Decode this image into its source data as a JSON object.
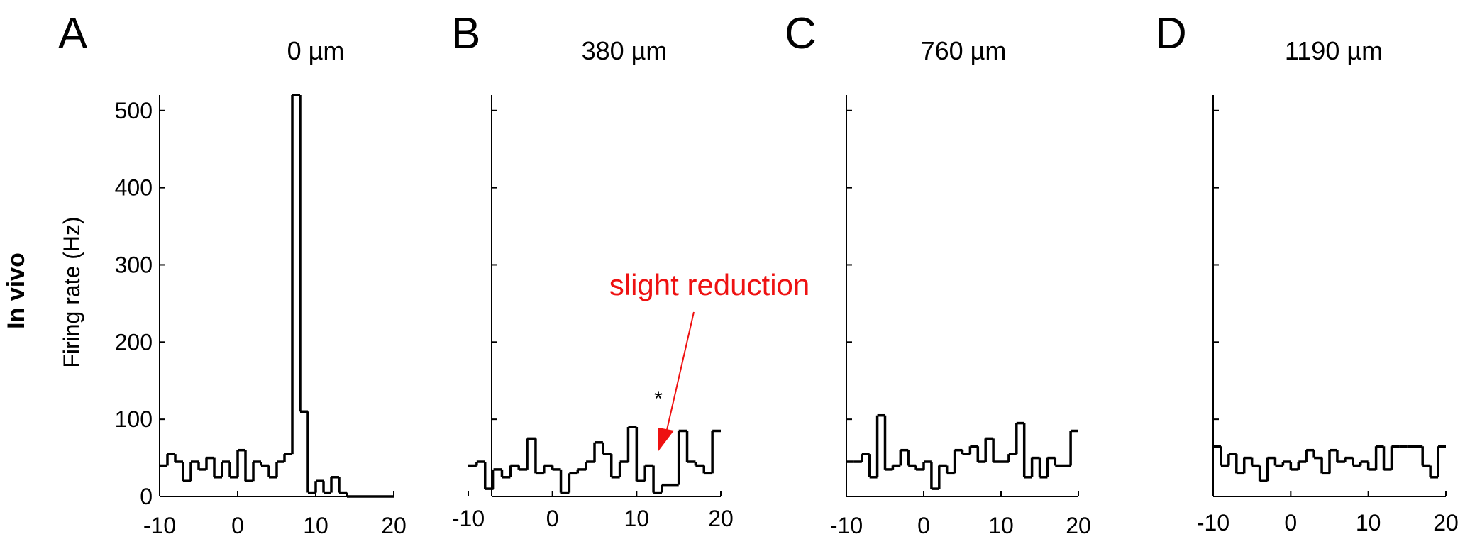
{
  "row_label": "In vivo",
  "ylabel": "Firing rate (Hz)",
  "annotation": {
    "text": "slight reduction",
    "color": "#ee1111",
    "marker": "*"
  },
  "chart_data": [
    {
      "type": "line",
      "step": true,
      "panel": "A",
      "title": "0  µm",
      "ylabel": "Firing rate (Hz)",
      "xlim": [
        -10,
        20
      ],
      "ylim": [
        0,
        520
      ],
      "x_ticks": [
        -10,
        0,
        10,
        20
      ],
      "y_ticks": [
        0,
        100,
        200,
        300,
        400,
        500
      ],
      "x_tick_labels": [
        "-10",
        "0",
        "10",
        "20"
      ],
      "y_tick_labels": [
        "0",
        "100",
        "200",
        "300",
        "400",
        "500"
      ],
      "bin_width": 1,
      "x": [
        -10,
        -9,
        -8,
        -7,
        -6,
        -5,
        -4,
        -3,
        -2,
        -1,
        0,
        1,
        2,
        3,
        4,
        5,
        6,
        7,
        8,
        9,
        10,
        11,
        12,
        13,
        14,
        15,
        16,
        17,
        18,
        19
      ],
      "values": [
        40,
        55,
        45,
        20,
        45,
        35,
        50,
        25,
        45,
        25,
        60,
        20,
        45,
        40,
        25,
        45,
        55,
        520,
        110,
        5,
        20,
        5,
        25,
        5,
        0,
        0,
        0,
        0,
        0,
        0
      ]
    },
    {
      "type": "line",
      "step": true,
      "panel": "B",
      "title": "380  µm",
      "xlim": [
        -10,
        20
      ],
      "ylim": [
        0,
        520
      ],
      "x_ticks": [
        -10,
        0,
        10,
        20
      ],
      "x_tick_labels": [
        "-10",
        "0",
        "10",
        "20"
      ],
      "bin_width": 1,
      "x": [
        -10,
        -9,
        -8,
        -7,
        -6,
        -5,
        -4,
        -3,
        -2,
        -1,
        0,
        1,
        2,
        3,
        4,
        5,
        6,
        7,
        8,
        9,
        10,
        11,
        12,
        13,
        14,
        15,
        16,
        17,
        18,
        19
      ],
      "values": [
        40,
        45,
        10,
        35,
        25,
        40,
        35,
        75,
        30,
        40,
        35,
        5,
        30,
        35,
        45,
        70,
        55,
        25,
        45,
        90,
        20,
        40,
        5,
        15,
        15,
        85,
        45,
        40,
        30,
        85
      ]
    },
    {
      "type": "line",
      "step": true,
      "panel": "C",
      "title": "760  µm",
      "xlim": [
        -10,
        20
      ],
      "ylim": [
        0,
        520
      ],
      "x_ticks": [
        -10,
        0,
        10,
        20
      ],
      "x_tick_labels": [
        "-10",
        "0",
        "10",
        "20"
      ],
      "bin_width": 1,
      "x": [
        -10,
        -9,
        -8,
        -7,
        -6,
        -5,
        -4,
        -3,
        -2,
        -1,
        0,
        1,
        2,
        3,
        4,
        5,
        6,
        7,
        8,
        9,
        10,
        11,
        12,
        13,
        14,
        15,
        16,
        17,
        18,
        19
      ],
      "values": [
        45,
        45,
        55,
        25,
        105,
        35,
        40,
        60,
        40,
        35,
        45,
        10,
        40,
        30,
        60,
        55,
        65,
        45,
        75,
        45,
        45,
        55,
        95,
        25,
        50,
        25,
        50,
        40,
        40,
        85
      ]
    },
    {
      "type": "line",
      "step": true,
      "panel": "D",
      "title": "1190  µm",
      "xlim": [
        -10,
        20
      ],
      "ylim": [
        0,
        520
      ],
      "x_ticks": [
        -10,
        0,
        10,
        20
      ],
      "x_tick_labels": [
        "-10",
        "0",
        "10",
        "20"
      ],
      "bin_width": 1,
      "x": [
        -10,
        -9,
        -8,
        -7,
        -6,
        -5,
        -4,
        -3,
        -2,
        -1,
        0,
        1,
        2,
        3,
        4,
        5,
        6,
        7,
        8,
        9,
        10,
        11,
        12,
        13,
        14,
        15,
        16,
        17,
        18,
        19
      ],
      "values": [
        65,
        40,
        55,
        30,
        50,
        40,
        20,
        50,
        40,
        45,
        35,
        45,
        60,
        50,
        30,
        60,
        45,
        50,
        40,
        45,
        35,
        65,
        35,
        65,
        65,
        65,
        65,
        40,
        25,
        65
      ]
    }
  ]
}
